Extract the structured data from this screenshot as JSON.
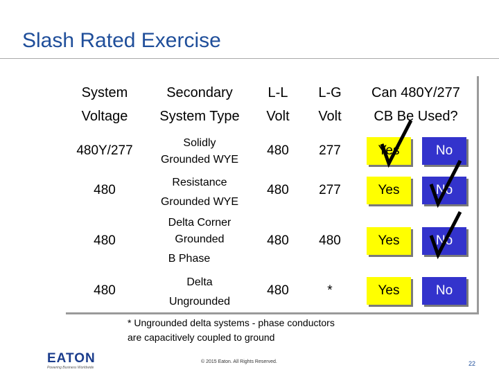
{
  "title": "Slash Rated Exercise",
  "headers": {
    "col1_line1": "System",
    "col1_line2": "Voltage",
    "col2_line1": "Secondary",
    "col2_line2": "System Type",
    "col3_line1": "L-L",
    "col3_line2": "Volt",
    "col4_line1": "L-G",
    "col4_line2": "Volt",
    "col5_line1": "Can 480Y/277",
    "col5_line2": "CB Be Used?"
  },
  "rows": [
    {
      "voltage": "480Y/277",
      "type_line1": "Solidly",
      "type_line2": "Grounded WYE",
      "type_line3": "",
      "ll": "480",
      "lg": "277",
      "yes": "Yes",
      "no": "No",
      "checked": "yes"
    },
    {
      "voltage": "480",
      "type_line1": "Resistance",
      "type_line2": "Grounded WYE",
      "type_line3": "",
      "ll": "480",
      "lg": "277",
      "yes": "Yes",
      "no": "No",
      "checked": "no"
    },
    {
      "voltage": "480",
      "type_line1": "Delta Corner",
      "type_line2": "Grounded",
      "type_line3": "B Phase",
      "ll": "480",
      "lg": "480",
      "yes": "Yes",
      "no": "No",
      "checked": "no"
    },
    {
      "voltage": "480",
      "type_line1": "Delta",
      "type_line2": "Ungrounded",
      "type_line3": "",
      "ll": "480",
      "lg": "*",
      "yes": "Yes",
      "no": "No",
      "checked": "none"
    }
  ],
  "footnote": {
    "line1": "* Ungrounded delta systems - phase conductors",
    "line2": "are capacitively coupled to ground"
  },
  "logo": {
    "name": "EATON",
    "tagline": "Powering Business Worldwide"
  },
  "copyright": "© 2015 Eaton. All Rights Reserved.",
  "page_number": "22",
  "colors": {
    "title": "#1f4e9a",
    "yes_button": "#ffff00",
    "no_button": "#3333cc",
    "check": "#000000"
  }
}
